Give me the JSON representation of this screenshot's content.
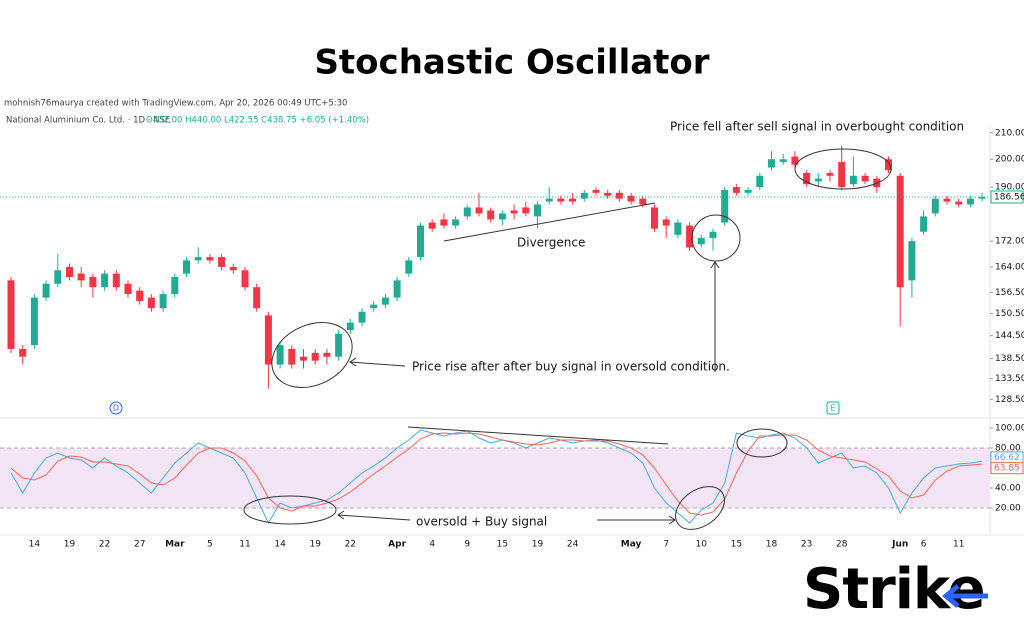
{
  "chart_data": {
    "type": "candlestick",
    "title": "Stochastic Oscillator",
    "credit": "mohnish76maurya created with TradingView.com, Apr 20, 2026 00:49 UTC+5:30",
    "symbol": "National Aluminium Co. Ltd. · 1D · NSE",
    "quote": "O432.00 H440.00 L422.55 C438.75 +6.05 (+1.40%)",
    "annotations": [
      "Price fell after sell signal in overbought condition",
      "Divergence",
      "Price rise after after buy signal in oversold condition.",
      "oversold + Buy signal"
    ],
    "events": [
      "D",
      "E"
    ],
    "brand": "Strike",
    "categories": [
      null,
      null,
      "14",
      null,
      null,
      "19",
      null,
      null,
      "22",
      null,
      null,
      "27",
      null,
      null,
      "Mar",
      null,
      null,
      "5",
      null,
      null,
      "11",
      null,
      null,
      "14",
      null,
      null,
      "19",
      null,
      null,
      "22",
      null,
      null,
      null,
      "Apr",
      null,
      null,
      "4",
      null,
      null,
      "9",
      null,
      null,
      "15",
      null,
      null,
      "19",
      null,
      null,
      "24",
      null,
      null,
      null,
      null,
      "May",
      null,
      null,
      "7",
      null,
      null,
      "10",
      null,
      null,
      "15",
      null,
      null,
      "18",
      null,
      null,
      "23",
      null,
      null,
      "28",
      null,
      null,
      null,
      null,
      "Jun",
      null,
      "6",
      null,
      null,
      "11",
      null,
      null
    ],
    "open": [
      160,
      141,
      142,
      155,
      159,
      164,
      162,
      161,
      158,
      162,
      159,
      157,
      155,
      152,
      156,
      162,
      166,
      167,
      167,
      164,
      163,
      158,
      150,
      137,
      141,
      139,
      140,
      140,
      139,
      146,
      148,
      152,
      153,
      155,
      162,
      167,
      178,
      179,
      177,
      180,
      183,
      182,
      179,
      182,
      183,
      180,
      185,
      186,
      186,
      186,
      189,
      188,
      188,
      187,
      186,
      183,
      179,
      174,
      177,
      171,
      173,
      178,
      190,
      188,
      190,
      197,
      199,
      201,
      195,
      192,
      195,
      199,
      191,
      194,
      193,
      200,
      194,
      160,
      175,
      181,
      186,
      185,
      184,
      186
    ],
    "high": [
      161,
      142,
      156,
      160,
      168,
      165,
      164,
      162,
      163,
      163,
      160,
      158,
      156,
      157,
      162,
      167,
      170,
      168,
      168,
      165,
      164,
      159,
      151,
      143,
      142,
      141,
      141,
      141,
      146,
      149,
      152,
      154,
      156,
      161,
      167,
      178,
      179,
      181,
      180,
      184,
      188,
      183,
      182,
      184,
      185,
      185,
      190,
      187,
      188,
      189,
      190,
      189,
      189,
      188,
      187,
      184,
      180,
      179,
      178,
      174,
      176,
      190,
      191,
      190,
      195,
      203,
      202,
      203,
      196,
      195,
      196,
      205,
      201,
      195,
      194,
      201,
      195,
      173,
      182,
      187,
      187,
      186,
      187,
      188
    ],
    "low": [
      140,
      137,
      141,
      154,
      158,
      160,
      158,
      155,
      157,
      157,
      155,
      153,
      151,
      151,
      155,
      161,
      165,
      165,
      163,
      162,
      157,
      151,
      131,
      136,
      136,
      136,
      137,
      137,
      138,
      145,
      147,
      151,
      152,
      154,
      161,
      166,
      175,
      176,
      176,
      179,
      180,
      178,
      177,
      179,
      180,
      176,
      184,
      184,
      184,
      185,
      187,
      186,
      185,
      184,
      183,
      175,
      173,
      173,
      169,
      170,
      169,
      177,
      187,
      187,
      189,
      196,
      198,
      197,
      190,
      190,
      192,
      189,
      190,
      191,
      188,
      195,
      147,
      155,
      174,
      180,
      184,
      183,
      183,
      185
    ],
    "close": [
      141,
      139,
      155,
      159,
      163,
      161,
      160,
      158,
      162,
      158,
      156,
      154,
      152,
      156,
      161,
      166,
      167,
      166,
      164,
      163,
      158,
      152,
      137,
      142,
      137,
      138,
      138,
      139,
      145,
      148,
      151,
      153,
      155,
      160,
      166,
      177,
      176,
      177,
      179,
      183,
      181,
      179,
      181,
      181,
      181,
      184,
      186,
      185,
      185,
      188,
      188,
      187,
      186,
      185,
      184,
      176,
      177,
      178,
      170,
      173,
      175,
      189,
      188,
      189,
      194,
      200,
      200,
      198,
      191,
      193,
      194,
      190,
      194,
      192,
      190,
      196,
      158,
      172,
      180,
      186,
      185,
      184,
      186,
      186.56
    ],
    "up_color": "#22ab94",
    "down_color": "#f23645",
    "ylim": [
      126,
      215
    ],
    "log_scale": true,
    "yticks": [
      {
        "value": 210,
        "label": "210.00"
      },
      {
        "value": 200,
        "label": "200.00"
      },
      {
        "value": 190,
        "label": "190.00"
      },
      {
        "value": 172,
        "label": "172.00"
      },
      {
        "value": 164,
        "label": "164.00"
      },
      {
        "value": 156.5,
        "label": "156.50"
      },
      {
        "value": 150.5,
        "label": "150.50"
      },
      {
        "value": 144.5,
        "label": "144.50"
      },
      {
        "value": 138.5,
        "label": "138.50"
      },
      {
        "value": 133.5,
        "label": "133.50"
      },
      {
        "value": 128.5,
        "label": "128.50"
      }
    ],
    "oscillator": {
      "type": "line",
      "ylim": [
        -7,
        110
      ],
      "band": [
        20,
        80
      ],
      "band_color": "#f3e5f5",
      "yticks": [
        {
          "value": 20,
          "label": "20.00"
        },
        {
          "value": 40,
          "label": "40.00"
        },
        {
          "value": 60,
          "label": "60.00"
        },
        {
          "value": 80,
          "label": "80.00"
        },
        {
          "value": 100,
          "label": "100.00"
        }
      ],
      "series": [
        {
          "color": "#4ba8d8",
          "values": [
            55,
            35,
            55,
            70,
            75,
            70,
            68,
            60,
            70,
            62,
            55,
            45,
            35,
            50,
            65,
            75,
            85,
            80,
            75,
            70,
            55,
            30,
            5,
            25,
            20,
            22,
            25,
            28,
            35,
            45,
            55,
            62,
            70,
            80,
            88,
            98,
            95,
            92,
            95,
            97,
            90,
            85,
            88,
            85,
            80,
            85,
            90,
            88,
            85,
            87,
            88,
            85,
            80,
            75,
            65,
            40,
            25,
            15,
            5,
            18,
            25,
            45,
            95,
            92,
            90,
            93,
            95,
            90,
            80,
            65,
            70,
            75,
            60,
            62,
            55,
            40,
            15,
            35,
            50,
            60,
            62,
            64,
            65,
            66.62
          ]
        },
        {
          "color": "#f0665c",
          "values": [
            60,
            50,
            48,
            53,
            67,
            72,
            71,
            66,
            66,
            64,
            62,
            54,
            45,
            43,
            50,
            63,
            75,
            80,
            80,
            75,
            67,
            52,
            30,
            20,
            17,
            22,
            22,
            25,
            29,
            36,
            45,
            54,
            62,
            71,
            79,
            89,
            94,
            95,
            94,
            95,
            94,
            91,
            88,
            86,
            84,
            83,
            85,
            88,
            88,
            87,
            87,
            87,
            84,
            80,
            73,
            60,
            43,
            27,
            15,
            13,
            16,
            29,
            55,
            77,
            92,
            92,
            93,
            93,
            88,
            78,
            72,
            70,
            68,
            66,
            59,
            52,
            37,
            30,
            33,
            48,
            57,
            62,
            63,
            63.85
          ]
        }
      ]
    }
  }
}
